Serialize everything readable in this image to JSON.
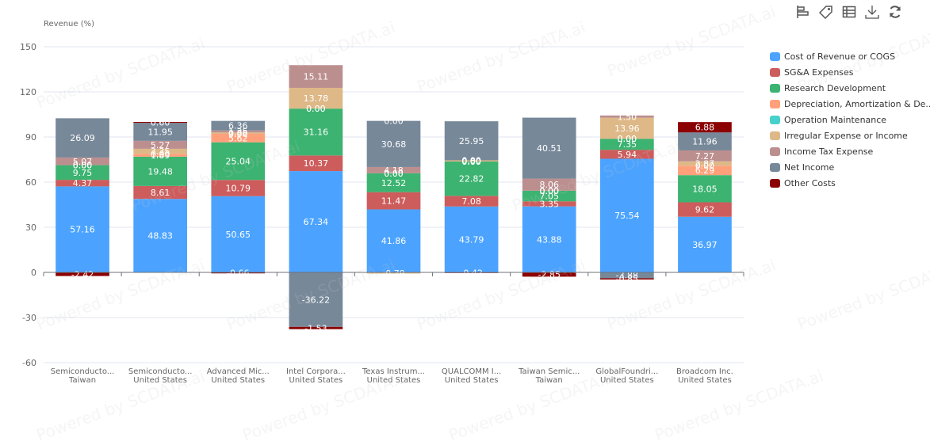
{
  "toolbar": {
    "icons": [
      "bar-orientation-icon",
      "tag-icon",
      "data-table-icon",
      "download-icon",
      "refresh-icon"
    ]
  },
  "watermark": "Powered by SCDATA.ai",
  "chart_data": {
    "type": "bar",
    "stacked": true,
    "title": "",
    "xlabel": "",
    "ylabel": "Revenue (%)",
    "ylim": [
      -60,
      150
    ],
    "yticks": [
      150,
      120,
      90,
      60,
      30,
      0,
      -30,
      -60
    ],
    "grid": true,
    "legend_position": "right",
    "categories": [
      {
        "name": "Semiconducto...",
        "country": "Taiwan"
      },
      {
        "name": "Semiconducto...",
        "country": "United States"
      },
      {
        "name": "Advanced Mic...",
        "country": "United States"
      },
      {
        "name": "Intel Corpora...",
        "country": "United States"
      },
      {
        "name": "Texas Instrum...",
        "country": "United States"
      },
      {
        "name": "QUALCOMM I...",
        "country": "United States"
      },
      {
        "name": "Taiwan Semic...",
        "country": "Taiwan"
      },
      {
        "name": "GlobalFoundri...",
        "country": "United States"
      },
      {
        "name": "Broadcom Inc.",
        "country": "United States"
      }
    ],
    "series": [
      {
        "name": "Cost of Revenue or COGS",
        "color": "#4ba3ff",
        "values": [
          57.16,
          48.83,
          50.65,
          67.34,
          41.86,
          43.79,
          43.88,
          75.54,
          36.97
        ]
      },
      {
        "name": "SG&A Expenses",
        "color": "#cd5c5c",
        "values": [
          4.37,
          8.61,
          10.79,
          10.37,
          11.47,
          7.08,
          3.35,
          5.94,
          9.62
        ]
      },
      {
        "name": "Research Development",
        "color": "#3cb371",
        "values": [
          9.75,
          19.48,
          25.04,
          31.16,
          12.52,
          22.82,
          7.05,
          7.35,
          18.05
        ]
      },
      {
        "name": "Depreciation, Amortization & De...",
        "color": "#ffa07a",
        "values": [
          0,
          1.89,
          5.62,
          0,
          0,
          0,
          0,
          0,
          6.29
        ]
      },
      {
        "name": "Operation Maintenance",
        "color": "#48d1cc",
        "values": [
          0.0,
          0.0,
          0.0,
          0,
          0.0,
          0.0,
          0.0,
          0.0,
          0.0
        ]
      },
      {
        "name": "Irregular Expense or Income",
        "color": "#deb887",
        "values": [
          0.0,
          3.35,
          0.88,
          13.78,
          -0.79,
          0.8,
          0,
          13.96,
          2.87
        ]
      },
      {
        "name": "Income Tax Expense",
        "color": "#bc8f8f",
        "values": [
          5.07,
          5.27,
          1.35,
          15.11,
          4.18,
          0.0,
          8.06,
          1.5,
          7.27
        ]
      },
      {
        "name": "Net Income",
        "color": "#778899",
        "values": [
          26.09,
          11.95,
          6.36,
          -36.22,
          30.68,
          25.95,
          40.51,
          -3.88,
          11.96
        ]
      },
      {
        "name": "Other Costs",
        "color": "#8b0000",
        "values": [
          -2.42,
          0.6,
          -0.66,
          -1.53,
          0.0,
          -0.42,
          -2.85,
          -0.85,
          6.88
        ]
      }
    ]
  }
}
